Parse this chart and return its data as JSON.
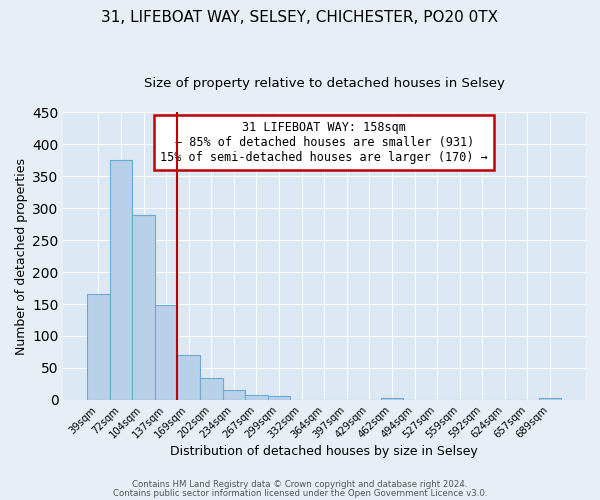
{
  "title1": "31, LIFEBOAT WAY, SELSEY, CHICHESTER, PO20 0TX",
  "title2": "Size of property relative to detached houses in Selsey",
  "xlabel": "Distribution of detached houses by size in Selsey",
  "ylabel": "Number of detached properties",
  "bar_labels": [
    "39sqm",
    "72sqm",
    "104sqm",
    "137sqm",
    "169sqm",
    "202sqm",
    "234sqm",
    "267sqm",
    "299sqm",
    "332sqm",
    "364sqm",
    "397sqm",
    "429sqm",
    "462sqm",
    "494sqm",
    "527sqm",
    "559sqm",
    "592sqm",
    "624sqm",
    "657sqm",
    "689sqm"
  ],
  "bar_values": [
    165,
    375,
    290,
    148,
    70,
    35,
    15,
    7,
    6,
    0,
    0,
    0,
    0,
    3,
    0,
    0,
    0,
    0,
    0,
    0,
    3
  ],
  "bar_color": "#b8d0e8",
  "bar_edgecolor": "#6aaad4",
  "ylim": [
    0,
    450
  ],
  "yticks": [
    0,
    50,
    100,
    150,
    200,
    250,
    300,
    350,
    400,
    450
  ],
  "vline_x": 3.5,
  "vline_color": "#c00000",
  "annotation_lines": [
    "31 LIFEBOAT WAY: 158sqm",
    "← 85% of detached houses are smaller (931)",
    "15% of semi-detached houses are larger (170) →"
  ],
  "footer1": "Contains HM Land Registry data © Crown copyright and database right 2024.",
  "footer2": "Contains public sector information licensed under the Open Government Licence v3.0.",
  "background_color": "#e8eef5",
  "plot_background_color": "#dce8f4",
  "grid_color": "#ffffff",
  "title1_fontsize": 11,
  "title2_fontsize": 9.5
}
